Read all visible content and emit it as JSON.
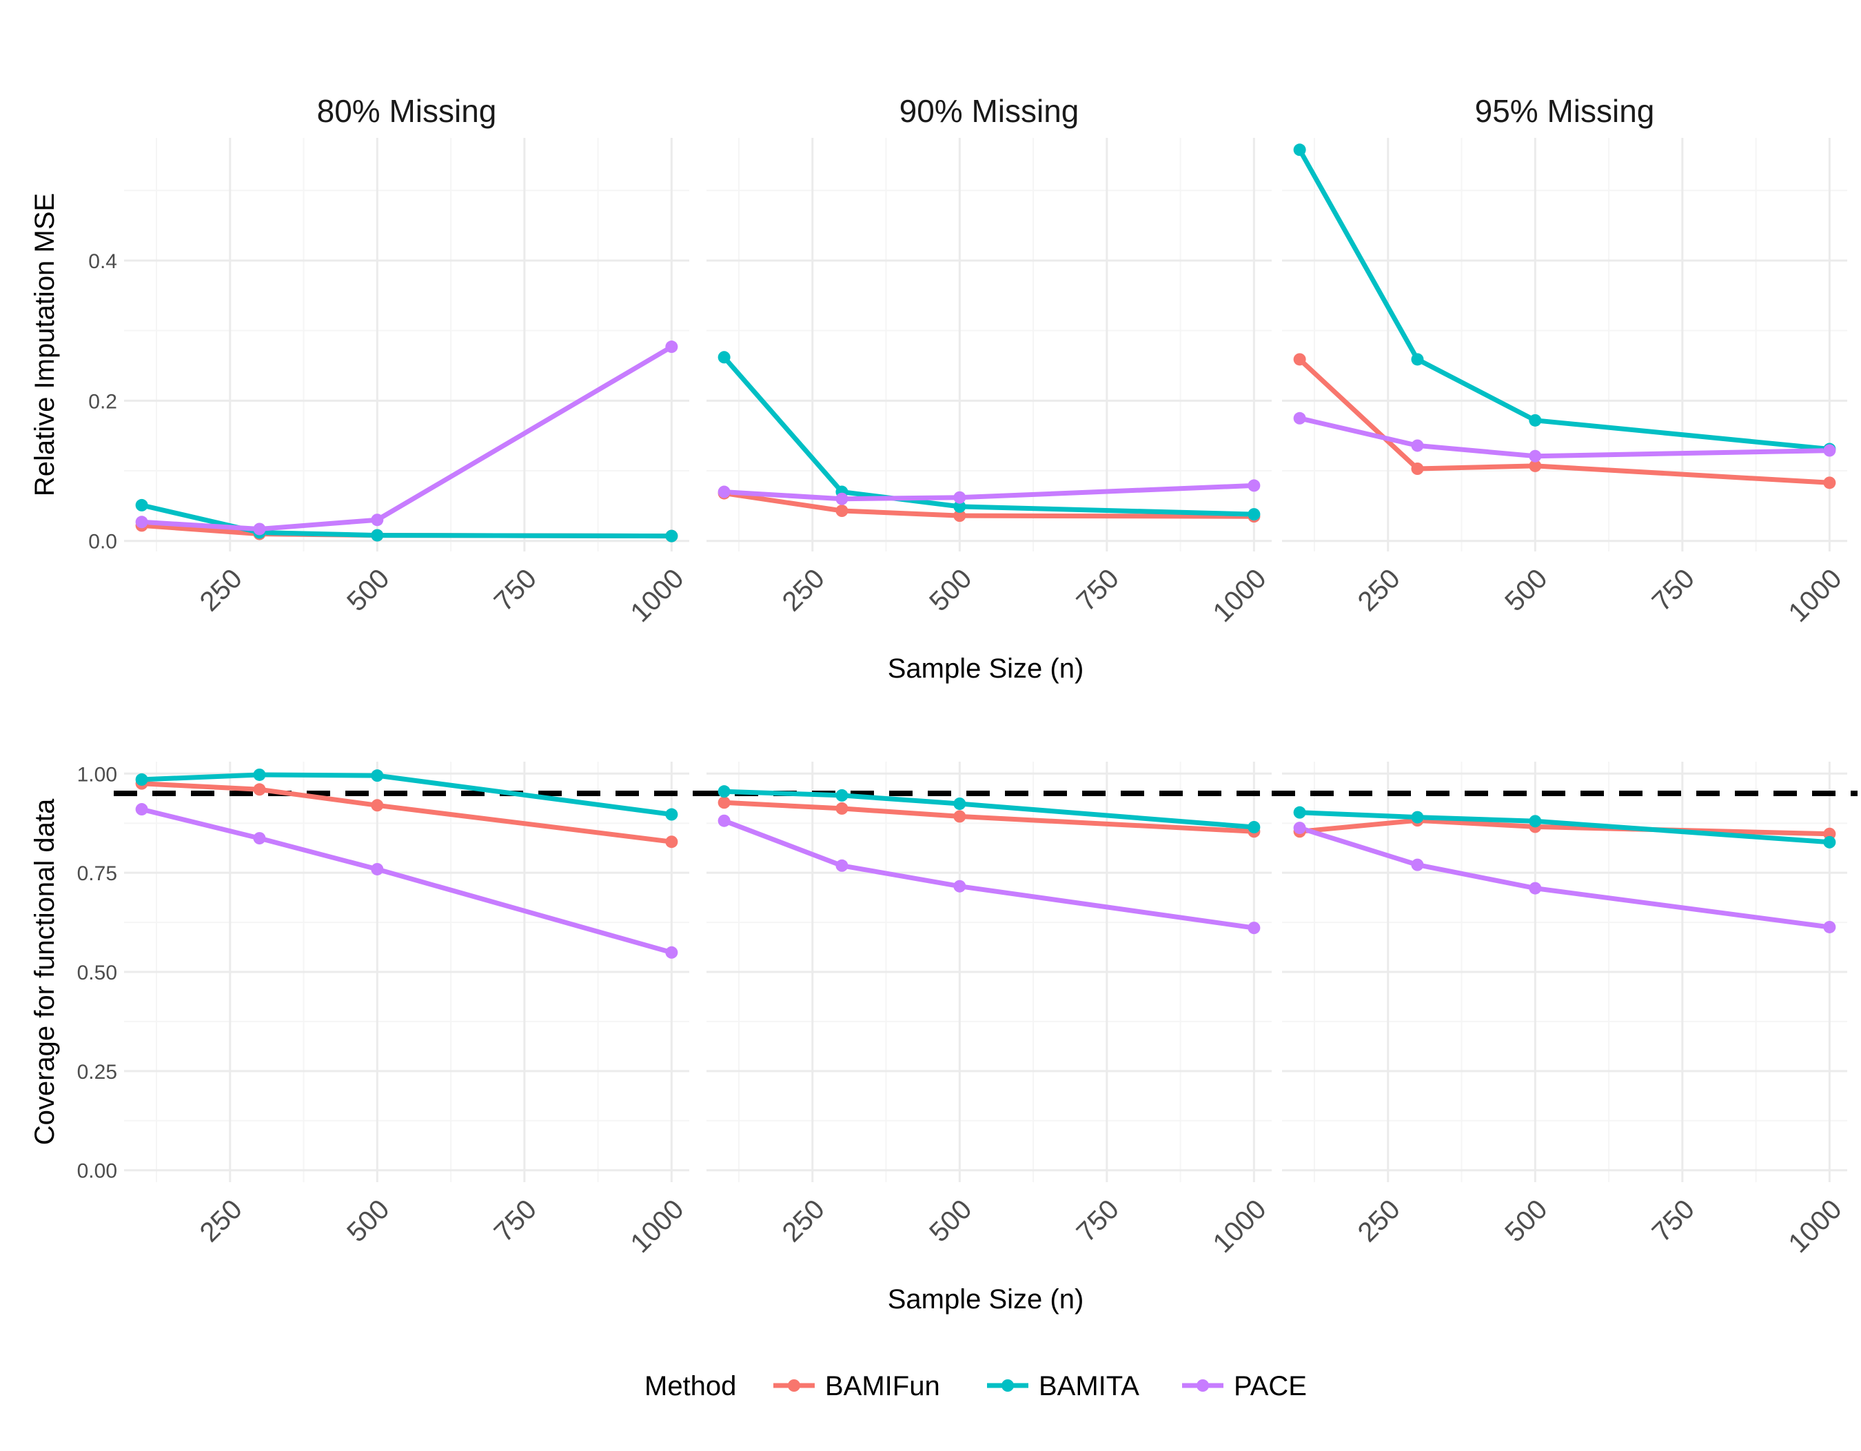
{
  "colors": {
    "BAMIFun": "#F8766D",
    "BAMITA": "#00BFC4",
    "PACE": "#C77CFF",
    "grid_major": "#EBEBEB",
    "grid_minor": "#F5F5F5",
    "reference_line": "#000000"
  },
  "chart_data": [
    {
      "type": "line",
      "facet_row": "top",
      "facets": [
        "80% Missing",
        "90% Missing",
        "95% Missing"
      ],
      "xlabel": "Sample Size (n)",
      "ylabel": "Relative Imputation MSE",
      "x": [
        100,
        300,
        500,
        1000
      ],
      "x_ticks": [
        250,
        500,
        750,
        1000
      ],
      "x_tick_labels": [
        "250",
        "500",
        "750",
        "1000"
      ],
      "xlim": [
        70,
        1030
      ],
      "y_ticks": [
        0.0,
        0.2,
        0.4
      ],
      "y_tick_labels": [
        "0.0",
        "0.2",
        "0.4"
      ],
      "ylim": [
        -0.015,
        0.575
      ],
      "grid": true,
      "panels": [
        {
          "title": "80% Missing",
          "series": [
            {
              "name": "BAMIFun",
              "values": [
                0.022,
                0.01,
                0.008,
                0.007
              ]
            },
            {
              "name": "BAMITA",
              "values": [
                0.051,
                0.012,
                0.008,
                0.007
              ]
            },
            {
              "name": "PACE",
              "values": [
                0.027,
                0.017,
                0.03,
                0.277
              ]
            }
          ]
        },
        {
          "title": "90% Missing",
          "series": [
            {
              "name": "BAMIFun",
              "values": [
                0.068,
                0.043,
                0.036,
                0.035
              ]
            },
            {
              "name": "BAMITA",
              "values": [
                0.262,
                0.07,
                0.049,
                0.038
              ]
            },
            {
              "name": "PACE",
              "values": [
                0.07,
                0.06,
                0.062,
                0.079
              ]
            }
          ]
        },
        {
          "title": "95% Missing",
          "series": [
            {
              "name": "BAMIFun",
              "values": [
                0.259,
                0.103,
                0.107,
                0.083
              ]
            },
            {
              "name": "BAMITA",
              "values": [
                0.558,
                0.259,
                0.172,
                0.131
              ]
            },
            {
              "name": "PACE",
              "values": [
                0.175,
                0.136,
                0.121,
                0.129
              ]
            }
          ]
        }
      ]
    },
    {
      "type": "line",
      "facet_row": "bottom",
      "xlabel": "Sample Size (n)",
      "ylabel": "Coverage for functional data",
      "x": [
        100,
        300,
        500,
        1000
      ],
      "x_ticks": [
        250,
        500,
        750,
        1000
      ],
      "x_tick_labels": [
        "250",
        "500",
        "750",
        "1000"
      ],
      "xlim": [
        70,
        1030
      ],
      "y_ticks": [
        0.0,
        0.25,
        0.5,
        0.75,
        1.0
      ],
      "y_tick_labels": [
        "0.00",
        "0.25",
        "0.50",
        "0.75",
        "1.00"
      ],
      "ylim": [
        -0.03,
        1.03
      ],
      "reference_line": {
        "y": 0.95,
        "style": "dashed"
      },
      "grid": true,
      "panels": [
        {
          "title": "80% Missing",
          "series": [
            {
              "name": "BAMIFun",
              "values": [
                0.975,
                0.96,
                0.92,
                0.828
              ]
            },
            {
              "name": "BAMITA",
              "values": [
                0.985,
                0.997,
                0.995,
                0.897
              ]
            },
            {
              "name": "PACE",
              "values": [
                0.91,
                0.837,
                0.759,
                0.549
              ]
            }
          ]
        },
        {
          "title": "90% Missing",
          "series": [
            {
              "name": "BAMIFun",
              "values": [
                0.927,
                0.912,
                0.892,
                0.854
              ]
            },
            {
              "name": "BAMITA",
              "values": [
                0.955,
                0.945,
                0.924,
                0.865
              ]
            },
            {
              "name": "PACE",
              "values": [
                0.881,
                0.768,
                0.716,
                0.611
              ]
            }
          ]
        },
        {
          "title": "95% Missing",
          "series": [
            {
              "name": "BAMIFun",
              "values": [
                0.854,
                0.882,
                0.866,
                0.848
              ]
            },
            {
              "name": "BAMITA",
              "values": [
                0.902,
                0.89,
                0.88,
                0.827
              ]
            },
            {
              "name": "PACE",
              "values": [
                0.863,
                0.77,
                0.711,
                0.613
              ]
            }
          ]
        }
      ]
    }
  ],
  "legend": {
    "title": "Method",
    "placement": "bottom",
    "items": [
      "BAMIFun",
      "BAMITA",
      "PACE"
    ]
  }
}
